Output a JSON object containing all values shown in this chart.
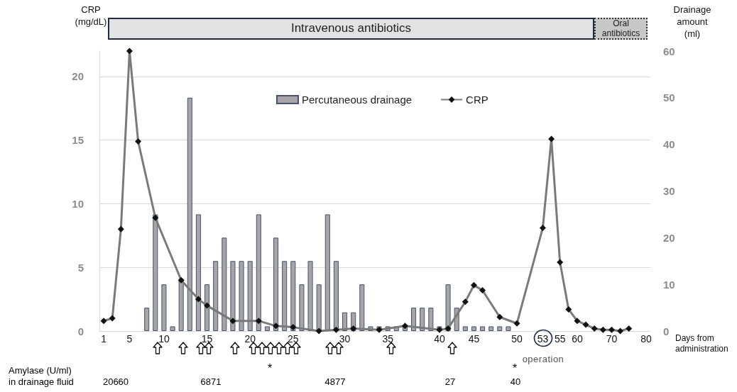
{
  "chart_data": {
    "type": "bar",
    "ylabel": "CRP\n(mg/dL)",
    "y2label": "Drainage\namount\n(ml)",
    "xlabel": "Days from\nadministration",
    "categories": [
      "1",
      null,
      null,
      "5",
      null,
      null,
      null,
      "10",
      null,
      null,
      null,
      null,
      "15",
      null,
      null,
      null,
      null,
      "20",
      null,
      null,
      null,
      null,
      "25",
      null,
      null,
      null,
      null,
      null,
      "30",
      null,
      null,
      null,
      null,
      "35",
      null,
      null,
      null,
      null,
      null,
      "40",
      null,
      null,
      null,
      "45",
      null,
      null,
      null,
      null,
      "50",
      null,
      null,
      "53",
      null,
      "55",
      null,
      "60",
      null,
      null,
      null,
      "70",
      null,
      null,
      null,
      "80"
    ],
    "series": [
      {
        "name": "Percutaneous drainage",
        "axis": "y2",
        "color": "#a8a4a8",
        "values": [
          null,
          null,
          null,
          null,
          null,
          5,
          25,
          10,
          1,
          11,
          50,
          25,
          10,
          15,
          20,
          15,
          15,
          15,
          25,
          1,
          20,
          15,
          15,
          10,
          15,
          10,
          25,
          15,
          4,
          4,
          10,
          1,
          1,
          1,
          1,
          1,
          5,
          5,
          5,
          1,
          10,
          5,
          1,
          1,
          1,
          1,
          1,
          1,
          null,
          null,
          null,
          null,
          null,
          null,
          null,
          null,
          null,
          null,
          null,
          null,
          null,
          null,
          null,
          null
        ]
      },
      {
        "name": "CRP",
        "type": "line",
        "color": "#7a7a7a",
        "values": [
          0.8,
          1.0,
          8.0,
          22,
          14.9,
          null,
          8.9,
          null,
          null,
          4.0,
          null,
          2.5,
          2.0,
          null,
          null,
          0.8,
          null,
          null,
          0.8,
          null,
          0.4,
          null,
          0.3,
          null,
          null,
          0.0,
          null,
          0.1,
          null,
          0.2,
          null,
          null,
          0.1,
          null,
          null,
          0.4,
          null,
          null,
          null,
          0.1,
          0.2,
          null,
          2.3,
          3.6,
          3.2,
          null,
          1.1,
          null,
          0.6,
          null,
          null,
          8.1,
          15.1,
          5.4,
          1.7,
          0.8,
          0.5,
          0.2,
          0.1,
          0.1,
          0.0,
          0.2,
          null,
          null
        ]
      }
    ],
    "ylim": [
      0,
      22
    ],
    "yticks": [
      0,
      5,
      10,
      15,
      20
    ],
    "y2lim": [
      0,
      60
    ],
    "y2ticks": [
      0,
      10,
      20,
      30,
      40,
      50,
      60
    ],
    "grid": "y",
    "legend": "top",
    "marker": "diamond",
    "annotations": [
      "Intravenous antibiotics",
      "Oral antibiotics",
      "operation",
      "*",
      "*",
      "Amylase (U/ml)\nin drainage fluid",
      "20660",
      "6871",
      "4877",
      "27",
      "40"
    ]
  }
}
